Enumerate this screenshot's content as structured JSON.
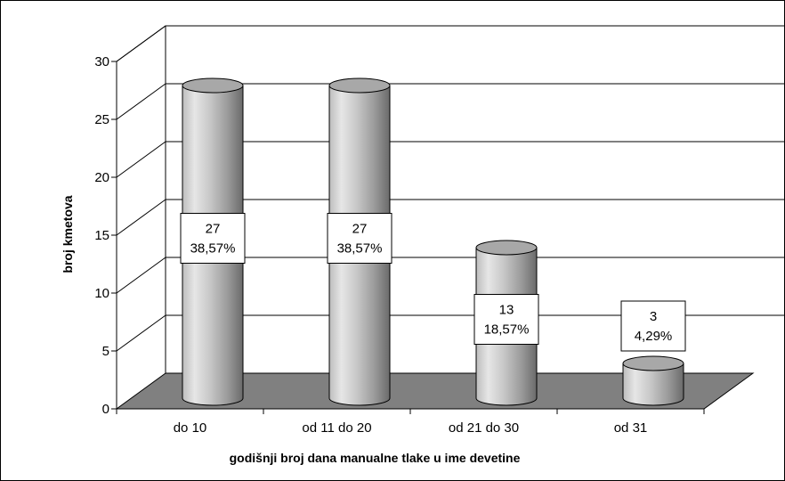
{
  "chart_data": {
    "type": "bar",
    "style": "3d-cylinder",
    "categories": [
      "do 10",
      "od 11 do 20",
      "od 21 do 30",
      "od 31"
    ],
    "values": [
      27,
      27,
      13,
      3
    ],
    "data_labels": [
      {
        "value": "27",
        "percent": "38,57%"
      },
      {
        "value": "27",
        "percent": "38,57%"
      },
      {
        "value": "13",
        "percent": "18,57%"
      },
      {
        "value": "3",
        "percent": "4,29%"
      }
    ],
    "yticks": [
      "0",
      "5",
      "10",
      "15",
      "20",
      "25",
      "30"
    ],
    "ylim": [
      0,
      30
    ],
    "xlabel": "godišnji broj dana manualne tlake u ime devetine",
    "ylabel": "broj kmetova",
    "grid": true,
    "legend": "none",
    "colors": {
      "floor": "#808080",
      "bar_light": "#e4e4e4",
      "bar_dark": "#707070",
      "bar_top": "#a8a8a8"
    }
  }
}
